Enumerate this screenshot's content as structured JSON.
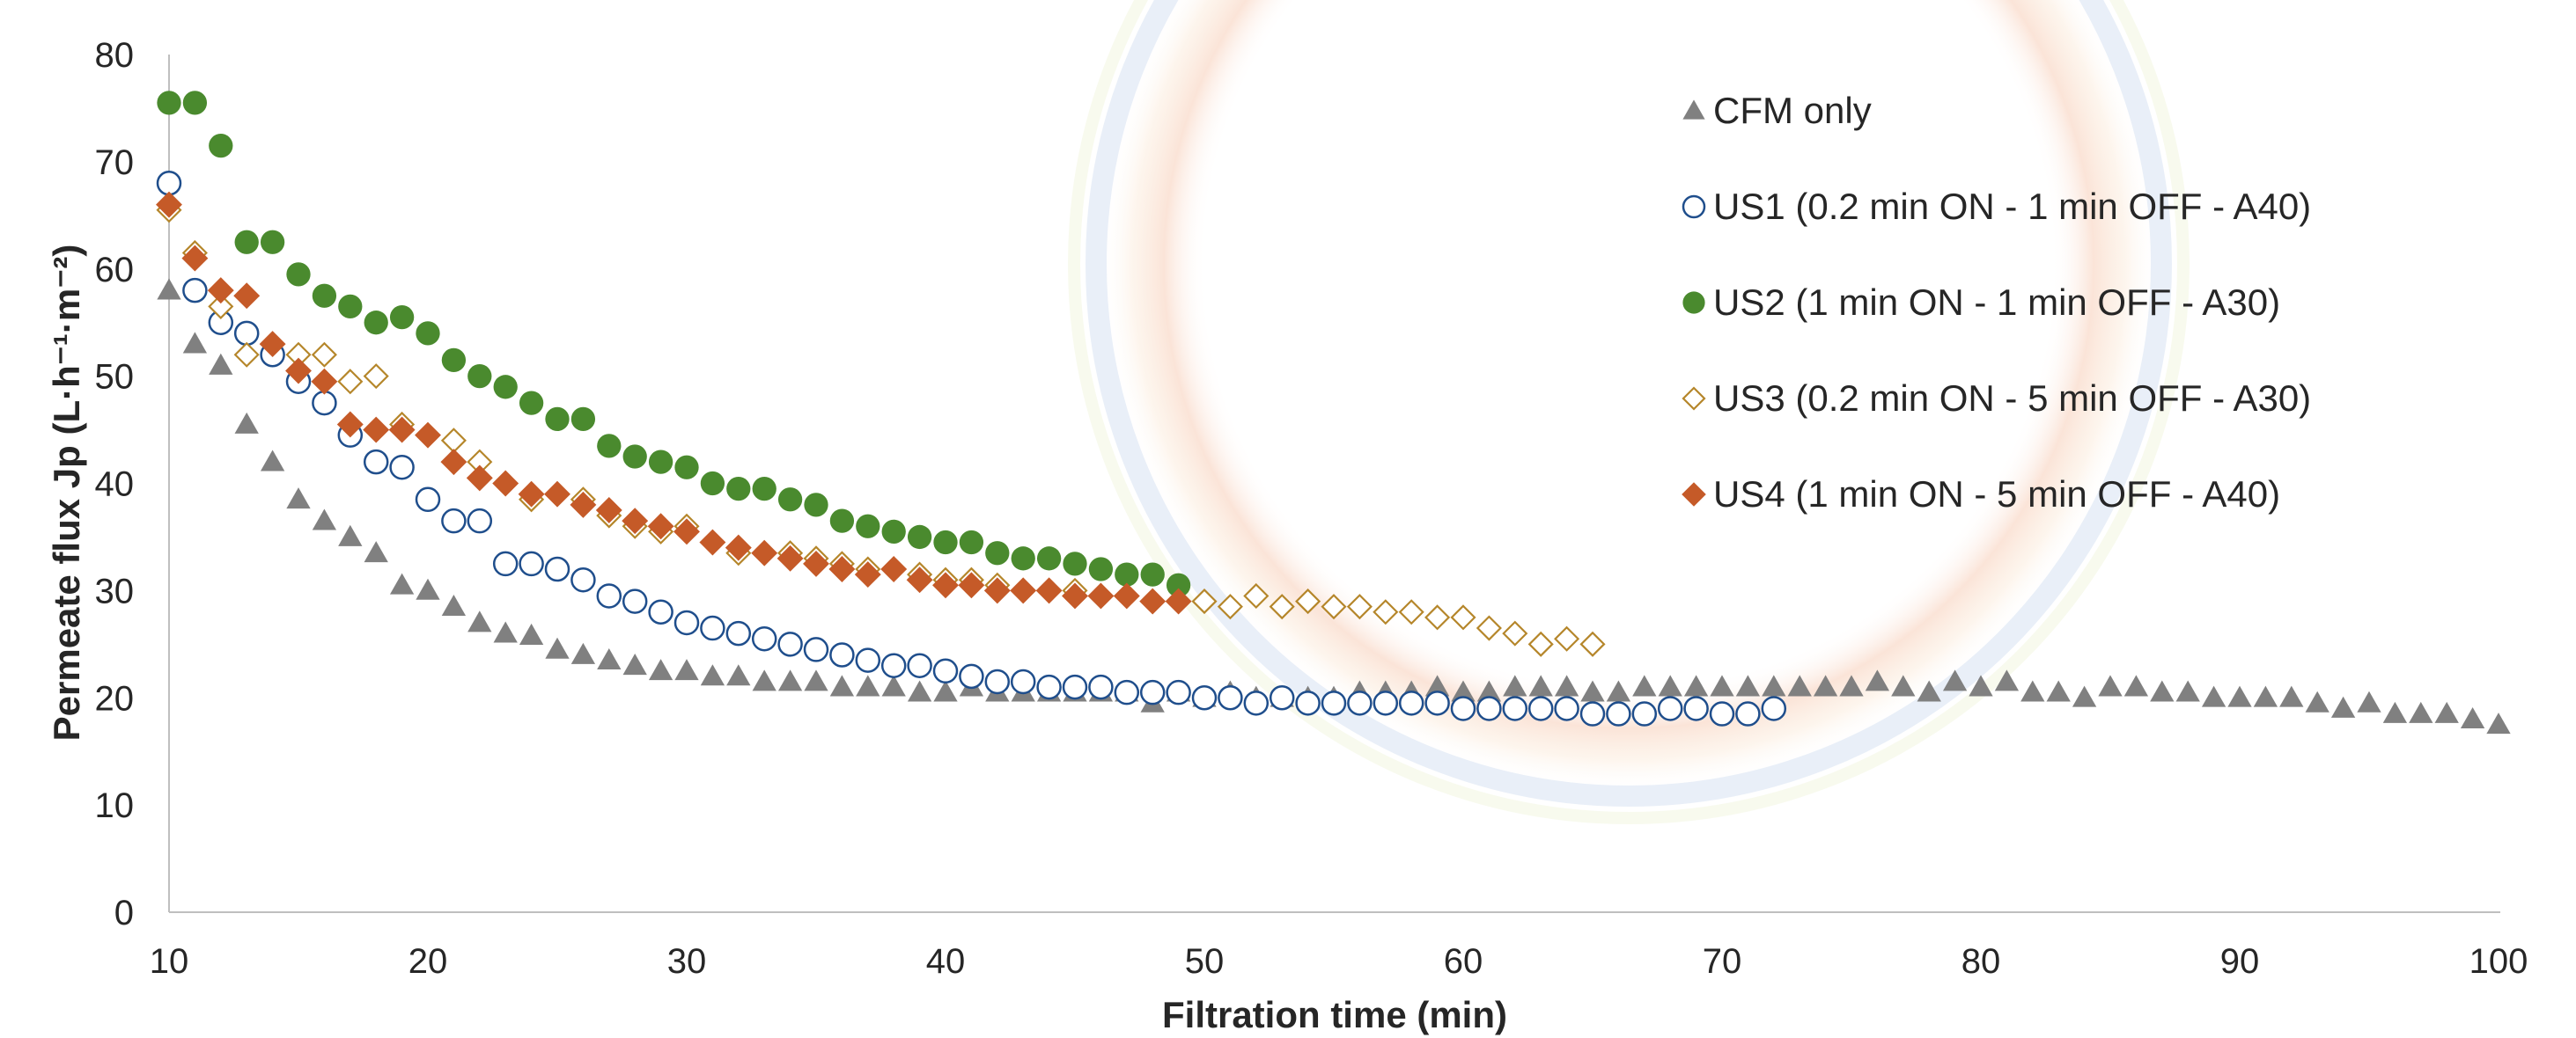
{
  "chart_data": {
    "type": "scatter",
    "xlabel": "Filtration time (min)",
    "ylabel": "Permeate flux Jp (L·h⁻¹·m⁻²)",
    "xlim": [
      10,
      100
    ],
    "ylim": [
      0,
      80
    ],
    "xticks": [
      "10",
      "20",
      "30",
      "40",
      "50",
      "60",
      "70",
      "80",
      "90",
      "100"
    ],
    "yticks": [
      "0",
      "10",
      "20",
      "30",
      "40",
      "50",
      "60",
      "70",
      "80"
    ],
    "grid": false,
    "legend_position": "top-right",
    "series": [
      {
        "name": "CFM only",
        "marker": "triangle",
        "color": "#808080",
        "x": [
          10,
          11,
          12,
          13,
          14,
          15,
          16,
          17,
          18,
          19,
          20,
          21,
          22,
          23,
          24,
          25,
          26,
          27,
          28,
          29,
          30,
          31,
          32,
          33,
          34,
          35,
          36,
          37,
          38,
          39,
          40,
          41,
          42,
          43,
          44,
          45,
          46,
          47,
          48,
          49,
          50,
          51,
          52,
          53,
          54,
          55,
          56,
          57,
          58,
          59,
          60,
          61,
          62,
          63,
          64,
          65,
          66,
          67,
          68,
          69,
          70,
          71,
          72,
          73,
          74,
          75,
          76,
          77,
          78,
          79,
          80,
          81,
          82,
          83,
          84,
          85,
          86,
          87,
          88,
          89,
          90,
          91,
          92,
          93,
          94,
          95,
          96,
          97,
          98,
          99,
          100
        ],
        "values": [
          58,
          53,
          51,
          45.5,
          42,
          38.5,
          36.5,
          35,
          33.5,
          30.5,
          30,
          28.5,
          27,
          26,
          25.8,
          24.5,
          24,
          23.5,
          23,
          22.5,
          22.5,
          22,
          22,
          21.5,
          21.5,
          21.5,
          21,
          21,
          21,
          20.5,
          20.5,
          21,
          20.5,
          20.5,
          20.5,
          20.5,
          20.5,
          20.5,
          19.5,
          20.5,
          20,
          20.5,
          20,
          20,
          20,
          20,
          20.5,
          20.5,
          20.5,
          21,
          20.5,
          20.5,
          21,
          21,
          21,
          20.5,
          20.5,
          21,
          21,
          21,
          21,
          21,
          21,
          21,
          21,
          21,
          21.5,
          21,
          20.5,
          21.5,
          21,
          21.5,
          20.5,
          20.5,
          20,
          21,
          21,
          20.5,
          20.5,
          20,
          20,
          20,
          20,
          19.5,
          19,
          19.5,
          18.5,
          18.5,
          18.5,
          18,
          17.5
        ]
      },
      {
        "name": "US1 (0.2 min ON - 1 min OFF - A40)",
        "marker": "circle-open",
        "color": "#1f4e8c",
        "x": [
          10,
          11,
          12,
          13,
          14,
          15,
          16,
          17,
          18,
          19,
          20,
          21,
          22,
          23,
          24,
          25,
          26,
          27,
          28,
          29,
          30,
          31,
          32,
          33,
          34,
          35,
          36,
          37,
          38,
          39,
          40,
          41,
          42,
          43,
          44,
          45,
          46,
          47,
          48,
          49,
          50,
          51,
          52,
          53,
          54,
          55,
          56,
          57,
          58,
          59,
          60,
          61,
          62,
          63,
          64,
          65,
          66,
          67,
          68,
          69,
          70,
          71,
          72
        ],
        "values": [
          68,
          58,
          55,
          54,
          52,
          49.5,
          47.5,
          44.5,
          42,
          41.5,
          38.5,
          36.5,
          36.5,
          32.5,
          32.5,
          32,
          31,
          29.5,
          29,
          28,
          27,
          26.5,
          26,
          25.5,
          25,
          24.5,
          24,
          23.5,
          23,
          23,
          22.5,
          22,
          21.5,
          21.5,
          21,
          21,
          21,
          20.5,
          20.5,
          20.5,
          20,
          20,
          19.5,
          20,
          19.5,
          19.5,
          19.5,
          19.5,
          19.5,
          19.5,
          19,
          19,
          19,
          19,
          19,
          18.5,
          18.5,
          18.5,
          19,
          19,
          18.5,
          18.5,
          19
        ]
      },
      {
        "name": "US2 (1 min ON - 1 min OFF - A30)",
        "marker": "circle-filled",
        "color": "#4a8a2e",
        "x": [
          10,
          11,
          12,
          13,
          14,
          15,
          16,
          17,
          18,
          19,
          20,
          21,
          22,
          23,
          24,
          25,
          26,
          27,
          28,
          29,
          30,
          31,
          32,
          33,
          34,
          35,
          36,
          37,
          38,
          39,
          40,
          41,
          42,
          43,
          44,
          45,
          46,
          47,
          48,
          49
        ],
        "values": [
          75.5,
          75.5,
          71.5,
          62.5,
          62.5,
          59.5,
          57.5,
          56.5,
          55,
          55.5,
          54,
          51.5,
          50,
          49,
          47.5,
          46,
          46,
          43.5,
          42.5,
          42,
          41.5,
          40,
          39.5,
          39.5,
          38.5,
          38,
          36.5,
          36,
          35.5,
          35,
          34.5,
          34.5,
          33.5,
          33,
          33,
          32.5,
          32,
          31.5,
          31.5,
          30.5
        ]
      },
      {
        "name": "US3 (0.2 min ON - 5 min OFF - A30)",
        "marker": "diamond-open",
        "color": "#b5862a",
        "x": [
          10,
          11,
          12,
          13,
          14,
          15,
          16,
          17,
          18,
          19,
          20,
          21,
          22,
          23,
          24,
          25,
          26,
          27,
          28,
          29,
          30,
          31,
          32,
          33,
          34,
          35,
          36,
          37,
          38,
          39,
          40,
          41,
          42,
          43,
          44,
          45,
          46,
          47,
          48,
          49,
          50,
          51,
          52,
          53,
          54,
          55,
          56,
          57,
          58,
          59,
          60,
          61,
          62,
          63,
          64,
          65
        ],
        "values": [
          65.5,
          61.5,
          56.5,
          52,
          53,
          52,
          52,
          49.5,
          50,
          45.5,
          44.5,
          44,
          42,
          40,
          38.5,
          39,
          38.5,
          37,
          36,
          35.5,
          36,
          34.5,
          33.5,
          33.5,
          33.5,
          33,
          32.5,
          32,
          32,
          31.5,
          31,
          31,
          30.5,
          30,
          30,
          30,
          29.5,
          29.5,
          29,
          29,
          29,
          28.5,
          29.5,
          28.5,
          29,
          28.5,
          28.5,
          28,
          28,
          27.5,
          27.5,
          26.5,
          26,
          25,
          25.5,
          25
        ]
      },
      {
        "name": "US4 (1 min ON - 5 min OFF - A40)",
        "marker": "diamond-filled",
        "color": "#c55a28",
        "x": [
          10,
          11,
          12,
          13,
          14,
          15,
          16,
          17,
          18,
          19,
          20,
          21,
          22,
          23,
          24,
          25,
          26,
          27,
          28,
          29,
          30,
          31,
          32,
          33,
          34,
          35,
          36,
          37,
          38,
          39,
          40,
          41,
          42,
          43,
          44,
          45,
          46,
          47,
          48,
          49
        ],
        "values": [
          66,
          61,
          58,
          57.5,
          53,
          50.5,
          49.5,
          45.5,
          45,
          45,
          44.5,
          42,
          40.5,
          40,
          39,
          39,
          38,
          37.5,
          36.5,
          36,
          35.5,
          34.5,
          34,
          33.5,
          33,
          32.5,
          32,
          31.5,
          32,
          31,
          30.5,
          30.5,
          30,
          30,
          30,
          29.5,
          29.5,
          29.5,
          29,
          29
        ]
      }
    ]
  }
}
